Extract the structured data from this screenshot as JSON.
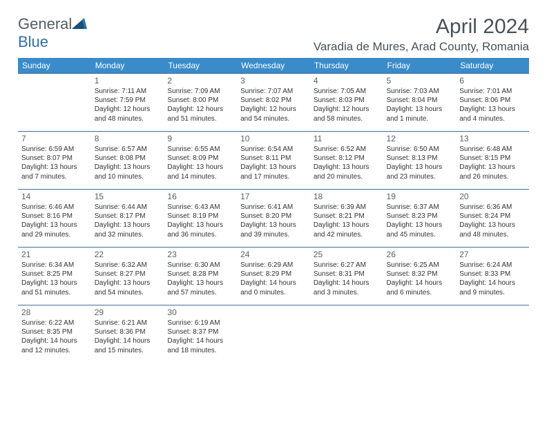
{
  "brand": {
    "part1": "General",
    "part2": "Blue"
  },
  "title": "April 2024",
  "location": "Varadia de Mures, Arad County, Romania",
  "colors": {
    "header_bg": "#3a8bc9",
    "header_text": "#ffffff",
    "border": "#406f9a",
    "text": "#333333",
    "title_text": "#4a5157",
    "logo_blue": "#2f6fa8",
    "logo_gray": "#555c63"
  },
  "weekdays": [
    "Sunday",
    "Monday",
    "Tuesday",
    "Wednesday",
    "Thursday",
    "Friday",
    "Saturday"
  ],
  "weeks": [
    [
      null,
      {
        "n": "1",
        "sr": "7:11 AM",
        "ss": "7:59 PM",
        "dl": "12 hours and 48 minutes."
      },
      {
        "n": "2",
        "sr": "7:09 AM",
        "ss": "8:00 PM",
        "dl": "12 hours and 51 minutes."
      },
      {
        "n": "3",
        "sr": "7:07 AM",
        "ss": "8:02 PM",
        "dl": "12 hours and 54 minutes."
      },
      {
        "n": "4",
        "sr": "7:05 AM",
        "ss": "8:03 PM",
        "dl": "12 hours and 58 minutes."
      },
      {
        "n": "5",
        "sr": "7:03 AM",
        "ss": "8:04 PM",
        "dl": "13 hours and 1 minute."
      },
      {
        "n": "6",
        "sr": "7:01 AM",
        "ss": "8:06 PM",
        "dl": "13 hours and 4 minutes."
      }
    ],
    [
      {
        "n": "7",
        "sr": "6:59 AM",
        "ss": "8:07 PM",
        "dl": "13 hours and 7 minutes."
      },
      {
        "n": "8",
        "sr": "6:57 AM",
        "ss": "8:08 PM",
        "dl": "13 hours and 10 minutes."
      },
      {
        "n": "9",
        "sr": "6:55 AM",
        "ss": "8:09 PM",
        "dl": "13 hours and 14 minutes."
      },
      {
        "n": "10",
        "sr": "6:54 AM",
        "ss": "8:11 PM",
        "dl": "13 hours and 17 minutes."
      },
      {
        "n": "11",
        "sr": "6:52 AM",
        "ss": "8:12 PM",
        "dl": "13 hours and 20 minutes."
      },
      {
        "n": "12",
        "sr": "6:50 AM",
        "ss": "8:13 PM",
        "dl": "13 hours and 23 minutes."
      },
      {
        "n": "13",
        "sr": "6:48 AM",
        "ss": "8:15 PM",
        "dl": "13 hours and 26 minutes."
      }
    ],
    [
      {
        "n": "14",
        "sr": "6:46 AM",
        "ss": "8:16 PM",
        "dl": "13 hours and 29 minutes."
      },
      {
        "n": "15",
        "sr": "6:44 AM",
        "ss": "8:17 PM",
        "dl": "13 hours and 32 minutes."
      },
      {
        "n": "16",
        "sr": "6:43 AM",
        "ss": "8:19 PM",
        "dl": "13 hours and 36 minutes."
      },
      {
        "n": "17",
        "sr": "6:41 AM",
        "ss": "8:20 PM",
        "dl": "13 hours and 39 minutes."
      },
      {
        "n": "18",
        "sr": "6:39 AM",
        "ss": "8:21 PM",
        "dl": "13 hours and 42 minutes."
      },
      {
        "n": "19",
        "sr": "6:37 AM",
        "ss": "8:23 PM",
        "dl": "13 hours and 45 minutes."
      },
      {
        "n": "20",
        "sr": "6:36 AM",
        "ss": "8:24 PM",
        "dl": "13 hours and 48 minutes."
      }
    ],
    [
      {
        "n": "21",
        "sr": "6:34 AM",
        "ss": "8:25 PM",
        "dl": "13 hours and 51 minutes."
      },
      {
        "n": "22",
        "sr": "6:32 AM",
        "ss": "8:27 PM",
        "dl": "13 hours and 54 minutes."
      },
      {
        "n": "23",
        "sr": "6:30 AM",
        "ss": "8:28 PM",
        "dl": "13 hours and 57 minutes."
      },
      {
        "n": "24",
        "sr": "6:29 AM",
        "ss": "8:29 PM",
        "dl": "14 hours and 0 minutes."
      },
      {
        "n": "25",
        "sr": "6:27 AM",
        "ss": "8:31 PM",
        "dl": "14 hours and 3 minutes."
      },
      {
        "n": "26",
        "sr": "6:25 AM",
        "ss": "8:32 PM",
        "dl": "14 hours and 6 minutes."
      },
      {
        "n": "27",
        "sr": "6:24 AM",
        "ss": "8:33 PM",
        "dl": "14 hours and 9 minutes."
      }
    ],
    [
      {
        "n": "28",
        "sr": "6:22 AM",
        "ss": "8:35 PM",
        "dl": "14 hours and 12 minutes."
      },
      {
        "n": "29",
        "sr": "6:21 AM",
        "ss": "8:36 PM",
        "dl": "14 hours and 15 minutes."
      },
      {
        "n": "30",
        "sr": "6:19 AM",
        "ss": "8:37 PM",
        "dl": "14 hours and 18 minutes."
      },
      null,
      null,
      null,
      null
    ]
  ],
  "labels": {
    "sunrise": "Sunrise:",
    "sunset": "Sunset:",
    "daylight": "Daylight:"
  }
}
